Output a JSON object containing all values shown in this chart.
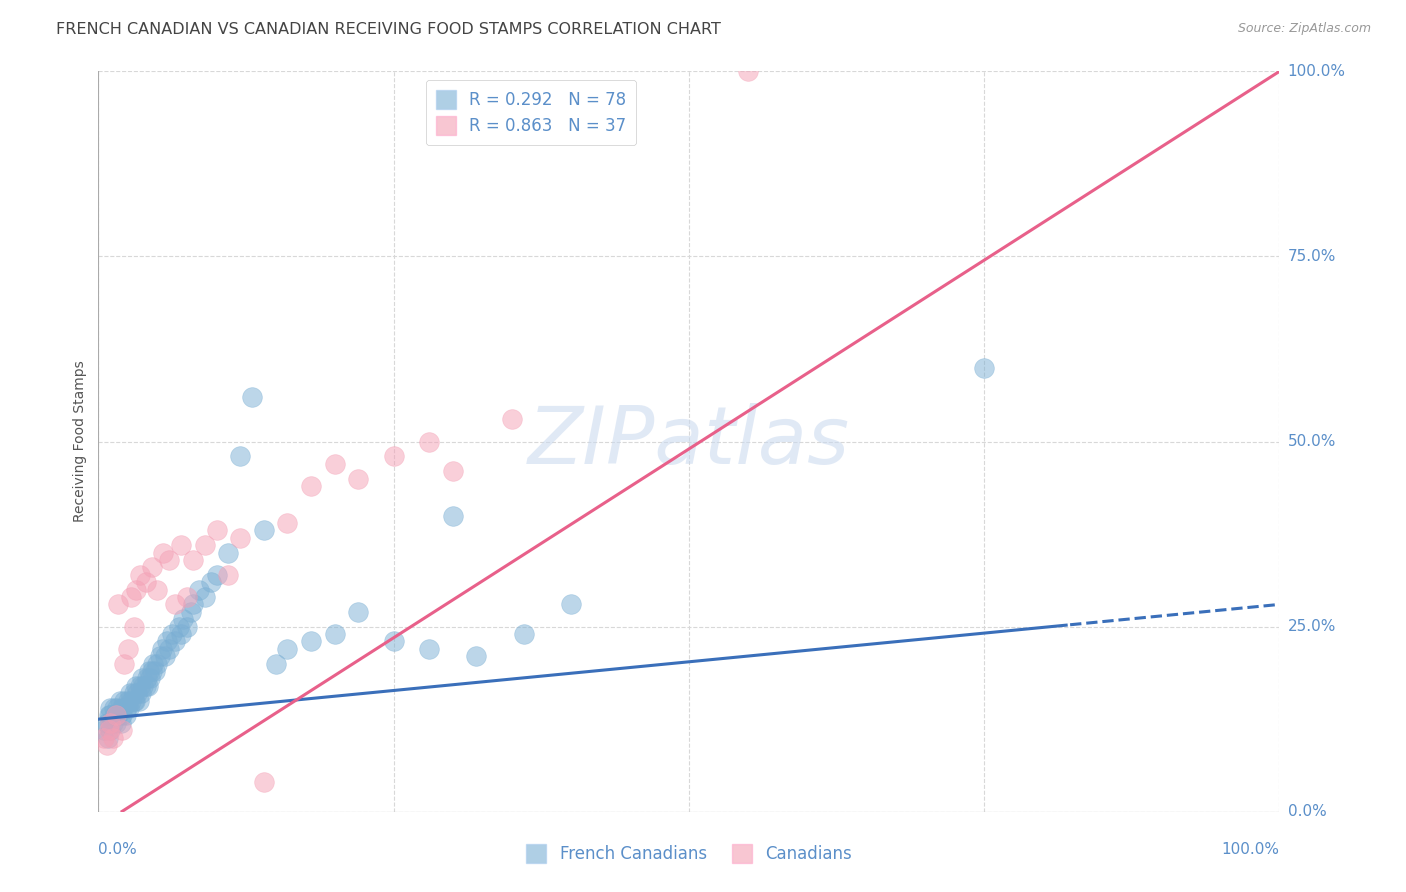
{
  "title": "FRENCH CANADIAN VS CANADIAN RECEIVING FOOD STAMPS CORRELATION CHART",
  "source": "Source: ZipAtlas.com",
  "ylabel": "Receiving Food Stamps",
  "watermark": "ZIPatlas",
  "ytick_labels": [
    "0.0%",
    "25.0%",
    "50.0%",
    "75.0%",
    "100.0%"
  ],
  "ytick_values": [
    0.0,
    0.25,
    0.5,
    0.75,
    1.0
  ],
  "xlim": [
    0.0,
    1.0
  ],
  "ylim": [
    0.0,
    1.0
  ],
  "french_canadian_color": "#7bafd4",
  "canadian_color": "#f4a0b5",
  "french_canadian_label": "French Canadians",
  "canadian_label": "Canadians",
  "fc_line_color": "#3a6fba",
  "ca_line_color": "#e8608a",
  "fc_line_intercept": 0.125,
  "fc_line_slope": 0.155,
  "ca_line_intercept": -0.02,
  "ca_line_slope": 1.02,
  "fc_dashed_intercept": 0.125,
  "fc_dashed_slope": 0.155,
  "legend_labels": [
    "R = 0.292   N = 78",
    "R = 0.863   N = 37"
  ],
  "background_color": "#ffffff",
  "grid_color": "#d8d8d8",
  "title_color": "#444444",
  "label_color": "#555555",
  "tick_color": "#5b8fc9",
  "title_fontsize": 11.5,
  "axis_label_fontsize": 10,
  "tick_fontsize": 11,
  "fc_scatter_x": [
    0.005,
    0.007,
    0.008,
    0.009,
    0.01,
    0.01,
    0.01,
    0.01,
    0.012,
    0.013,
    0.014,
    0.015,
    0.016,
    0.017,
    0.018,
    0.019,
    0.02,
    0.02,
    0.021,
    0.022,
    0.023,
    0.024,
    0.025,
    0.026,
    0.027,
    0.028,
    0.03,
    0.03,
    0.031,
    0.032,
    0.033,
    0.034,
    0.035,
    0.036,
    0.037,
    0.038,
    0.04,
    0.041,
    0.042,
    0.043,
    0.044,
    0.045,
    0.046,
    0.048,
    0.05,
    0.052,
    0.054,
    0.056,
    0.058,
    0.06,
    0.062,
    0.065,
    0.068,
    0.07,
    0.072,
    0.075,
    0.078,
    0.08,
    0.085,
    0.09,
    0.095,
    0.1,
    0.11,
    0.12,
    0.13,
    0.14,
    0.15,
    0.16,
    0.18,
    0.2,
    0.22,
    0.25,
    0.28,
    0.32,
    0.36,
    0.4,
    0.75,
    0.3
  ],
  "fc_scatter_y": [
    0.11,
    0.12,
    0.1,
    0.13,
    0.14,
    0.12,
    0.11,
    0.13,
    0.12,
    0.14,
    0.13,
    0.12,
    0.14,
    0.13,
    0.15,
    0.12,
    0.14,
    0.13,
    0.14,
    0.15,
    0.13,
    0.14,
    0.15,
    0.14,
    0.16,
    0.15,
    0.15,
    0.16,
    0.15,
    0.17,
    0.16,
    0.15,
    0.17,
    0.16,
    0.18,
    0.17,
    0.17,
    0.18,
    0.17,
    0.19,
    0.18,
    0.19,
    0.2,
    0.19,
    0.2,
    0.21,
    0.22,
    0.21,
    0.23,
    0.22,
    0.24,
    0.23,
    0.25,
    0.24,
    0.26,
    0.25,
    0.27,
    0.28,
    0.3,
    0.29,
    0.31,
    0.32,
    0.35,
    0.48,
    0.56,
    0.38,
    0.2,
    0.22,
    0.23,
    0.24,
    0.27,
    0.23,
    0.22,
    0.21,
    0.24,
    0.28,
    0.6,
    0.4
  ],
  "ca_scatter_x": [
    0.005,
    0.007,
    0.009,
    0.01,
    0.012,
    0.015,
    0.017,
    0.02,
    0.022,
    0.025,
    0.028,
    0.03,
    0.032,
    0.035,
    0.04,
    0.045,
    0.05,
    0.055,
    0.06,
    0.065,
    0.07,
    0.075,
    0.08,
    0.09,
    0.1,
    0.11,
    0.12,
    0.14,
    0.16,
    0.18,
    0.2,
    0.22,
    0.25,
    0.28,
    0.3,
    0.35,
    0.55
  ],
  "ca_scatter_y": [
    0.1,
    0.09,
    0.11,
    0.12,
    0.1,
    0.13,
    0.28,
    0.11,
    0.2,
    0.22,
    0.29,
    0.25,
    0.3,
    0.32,
    0.31,
    0.33,
    0.3,
    0.35,
    0.34,
    0.28,
    0.36,
    0.29,
    0.34,
    0.36,
    0.38,
    0.32,
    0.37,
    0.04,
    0.39,
    0.44,
    0.47,
    0.45,
    0.48,
    0.5,
    0.46,
    0.53,
    1.0
  ]
}
